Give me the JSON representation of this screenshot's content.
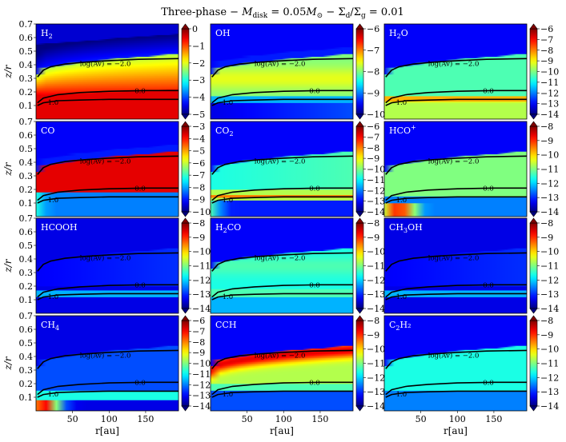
{
  "chart_data": {
    "type": "heatmap",
    "title": "Three-phase − M_disk = 0.05M⊙ − Σd/Σg = 0.01",
    "title_parts": {
      "lead": "Three-phase − ",
      "mass_symbol": "M",
      "mass_subscript": "disk",
      "mass_value": " = 0.05",
      "sun_symbol": "M",
      "sun_subscript": "⊙",
      "sep": " − ",
      "sigma": "Σ",
      "dust_sub": "d",
      "slash": "/",
      "gas_sub": "g",
      "ratio_value": " = 0.01"
    },
    "xlabel": "r[au]",
    "ylabel": "z/r",
    "xlim": [
      0,
      195
    ],
    "ylim": [
      0.0,
      0.7
    ],
    "xticks": [
      50,
      100,
      150
    ],
    "yticks": [
      0.1,
      0.2,
      0.3,
      0.4,
      0.5,
      0.6,
      0.7
    ],
    "contour_levels": [
      "log(Av) = −2.0",
      "0.0",
      "1.0"
    ],
    "contour_curves": {
      "av_m2": [
        [
          2,
          0.31
        ],
        [
          10,
          0.36
        ],
        [
          20,
          0.385
        ],
        [
          40,
          0.405
        ],
        [
          70,
          0.42
        ],
        [
          100,
          0.43
        ],
        [
          140,
          0.44
        ],
        [
          195,
          0.445
        ]
      ],
      "av_0": [
        [
          2,
          0.12
        ],
        [
          10,
          0.155
        ],
        [
          30,
          0.18
        ],
        [
          60,
          0.195
        ],
        [
          100,
          0.205
        ],
        [
          150,
          0.21
        ],
        [
          195,
          0.21
        ]
      ],
      "av_1": [
        [
          2,
          0.1
        ],
        [
          10,
          0.12
        ],
        [
          30,
          0.135
        ],
        [
          60,
          0.14
        ],
        [
          100,
          0.145
        ],
        [
          150,
          0.145
        ],
        [
          195,
          0.145
        ]
      ]
    },
    "panels": [
      {
        "species": "H",
        "sub": "2",
        "sup": "",
        "post": "",
        "cbar_ticks": [
          0,
          -1,
          -2,
          -3,
          -4,
          -5
        ],
        "cbar_range": [
          -5,
          0
        ],
        "profile": "h2",
        "labels": [
          "log(Av) = −2.0",
          "0.0",
          "1.0"
        ]
      },
      {
        "species": "OH",
        "sub": "",
        "sup": "",
        "post": "",
        "cbar_ticks": [
          -6,
          -7,
          -8,
          -9,
          -10
        ],
        "cbar_range": [
          -10,
          -6
        ],
        "profile": "oh",
        "labels": [
          "log(Av) = −2.0",
          "0.0",
          "1.0"
        ]
      },
      {
        "species": "H",
        "sub": "2",
        "sup": "",
        "post": "O",
        "cbar_ticks": [
          -6,
          -7,
          -8,
          -9,
          -10,
          -11,
          -12,
          -13,
          -14
        ],
        "cbar_range": [
          -14,
          -6
        ],
        "profile": "h2o",
        "labels": [
          "log(Av) = −2.0",
          "0.0",
          "1.0"
        ]
      },
      {
        "species": "CO",
        "sub": "",
        "sup": "",
        "post": "",
        "cbar_ticks": [
          -3,
          -4,
          -5,
          -6,
          -7,
          -8,
          -9,
          -10
        ],
        "cbar_range": [
          -10,
          -3
        ],
        "profile": "co",
        "labels": [
          "log(Av) = −2.0",
          "0.0",
          "1.0"
        ]
      },
      {
        "species": "CO",
        "sub": "2",
        "sup": "",
        "post": "",
        "cbar_ticks": [
          -6,
          -7,
          -8,
          -9,
          -10,
          -11,
          -12,
          -13,
          -14
        ],
        "cbar_range": [
          -14,
          -6
        ],
        "profile": "co2",
        "labels": [
          "log(Av) = −2.0",
          "0.0",
          "1.0"
        ]
      },
      {
        "species": "HCO",
        "sub": "",
        "sup": "+",
        "post": "",
        "cbar_ticks": [
          -8,
          -9,
          -10,
          -11,
          -12,
          -13,
          -14
        ],
        "cbar_range": [
          -14,
          -8
        ],
        "profile": "hcop",
        "labels": [
          "log(Av) = −2.0",
          "0.0",
          "1.0"
        ]
      },
      {
        "species": "HCOOH",
        "sub": "",
        "sup": "",
        "post": "",
        "cbar_ticks": [
          -8,
          -9,
          -10,
          -11,
          -12,
          -13,
          -14
        ],
        "cbar_range": [
          -14,
          -8
        ],
        "profile": "weak",
        "labels": [
          "log(Av) = −2.0",
          "0.0",
          "1.0"
        ]
      },
      {
        "species": "H",
        "sub": "2",
        "sup": "",
        "post": "CO",
        "cbar_ticks": [
          -8,
          -9,
          -10,
          -11,
          -12,
          -13,
          -14
        ],
        "cbar_range": [
          -14,
          -8
        ],
        "profile": "h2co",
        "labels": [
          "log(Av) = −2.0",
          "0.0",
          "1.0"
        ]
      },
      {
        "species": "CH",
        "sub": "3",
        "sup": "",
        "post": "OH",
        "cbar_ticks": [
          -8,
          -9,
          -10,
          -11,
          -12,
          -13,
          -14
        ],
        "cbar_range": [
          -14,
          -8
        ],
        "profile": "weak",
        "labels": [
          "log(Av) = −2.0",
          "0.0",
          "1.0"
        ]
      },
      {
        "species": "CH",
        "sub": "4",
        "sup": "",
        "post": "",
        "cbar_ticks": [
          -6,
          -7,
          -8,
          -9,
          -10,
          -11,
          -12,
          -13,
          -14
        ],
        "cbar_range": [
          -14,
          -6
        ],
        "profile": "ch4",
        "labels": [
          "log(Av) = −2.0",
          "0.0",
          "1.0"
        ]
      },
      {
        "species": "CCH",
        "sub": "",
        "sup": "",
        "post": "",
        "cbar_ticks": [
          -8,
          -9,
          -10,
          -11,
          -12,
          -13,
          -14
        ],
        "cbar_range": [
          -14,
          -8
        ],
        "profile": "cch",
        "labels": [
          "log(Av) = −2.0",
          "0.0",
          "1.0"
        ]
      },
      {
        "species": "C",
        "sub": "2",
        "sup": "",
        "post": "H₂",
        "cbar_ticks": [
          -8,
          -9,
          -10,
          -11,
          -12,
          -13,
          -14
        ],
        "cbar_range": [
          -14,
          -8
        ],
        "profile": "c2h2",
        "labels": [
          "log(Av) = −2.0",
          "0.0",
          "1.0"
        ]
      }
    ]
  }
}
